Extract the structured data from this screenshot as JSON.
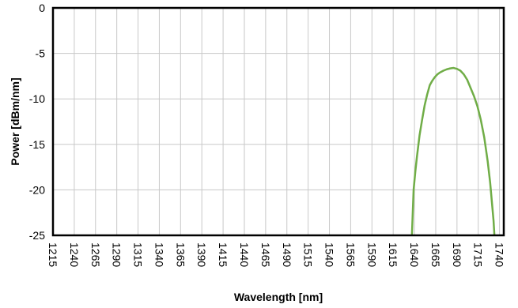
{
  "chart_data": {
    "type": "line",
    "xlabel": "Wavelength [nm]",
    "ylabel": "Power [dBm/nm]",
    "xlim": [
      1215,
      1745
    ],
    "ylim": [
      -25,
      0
    ],
    "x_ticks": [
      "1215",
      "1240",
      "1265",
      "1290",
      "1315",
      "1340",
      "1365",
      "1390",
      "1415",
      "1440",
      "1465",
      "1490",
      "1515",
      "1540",
      "1565",
      "1590",
      "1615",
      "1640",
      "1665",
      "1690",
      "1715",
      "1740"
    ],
    "y_ticks": [
      "0",
      "-5",
      "-10",
      "-15",
      "-20",
      "-25"
    ],
    "grid": true,
    "legend": "none",
    "series": [
      {
        "color": "#70ad47",
        "x": [
          1637,
          1639,
          1641,
          1643,
          1646,
          1649,
          1652,
          1655,
          1658,
          1661,
          1664,
          1667,
          1670,
          1674,
          1678,
          1682,
          1686,
          1690,
          1694,
          1698,
          1702,
          1706,
          1710,
          1714,
          1718,
          1722,
          1726,
          1729,
          1731,
          1733,
          1734
        ],
        "y": [
          -25,
          -20,
          -18,
          -16.3,
          -14,
          -12.3,
          -10.7,
          -9.5,
          -8.5,
          -8,
          -7.6,
          -7.3,
          -7.1,
          -6.9,
          -6.75,
          -6.65,
          -6.6,
          -6.7,
          -6.9,
          -7.3,
          -7.9,
          -8.8,
          -9.7,
          -10.8,
          -12.3,
          -14.2,
          -16.8,
          -19.2,
          -21.3,
          -23.4,
          -25
        ]
      }
    ]
  }
}
